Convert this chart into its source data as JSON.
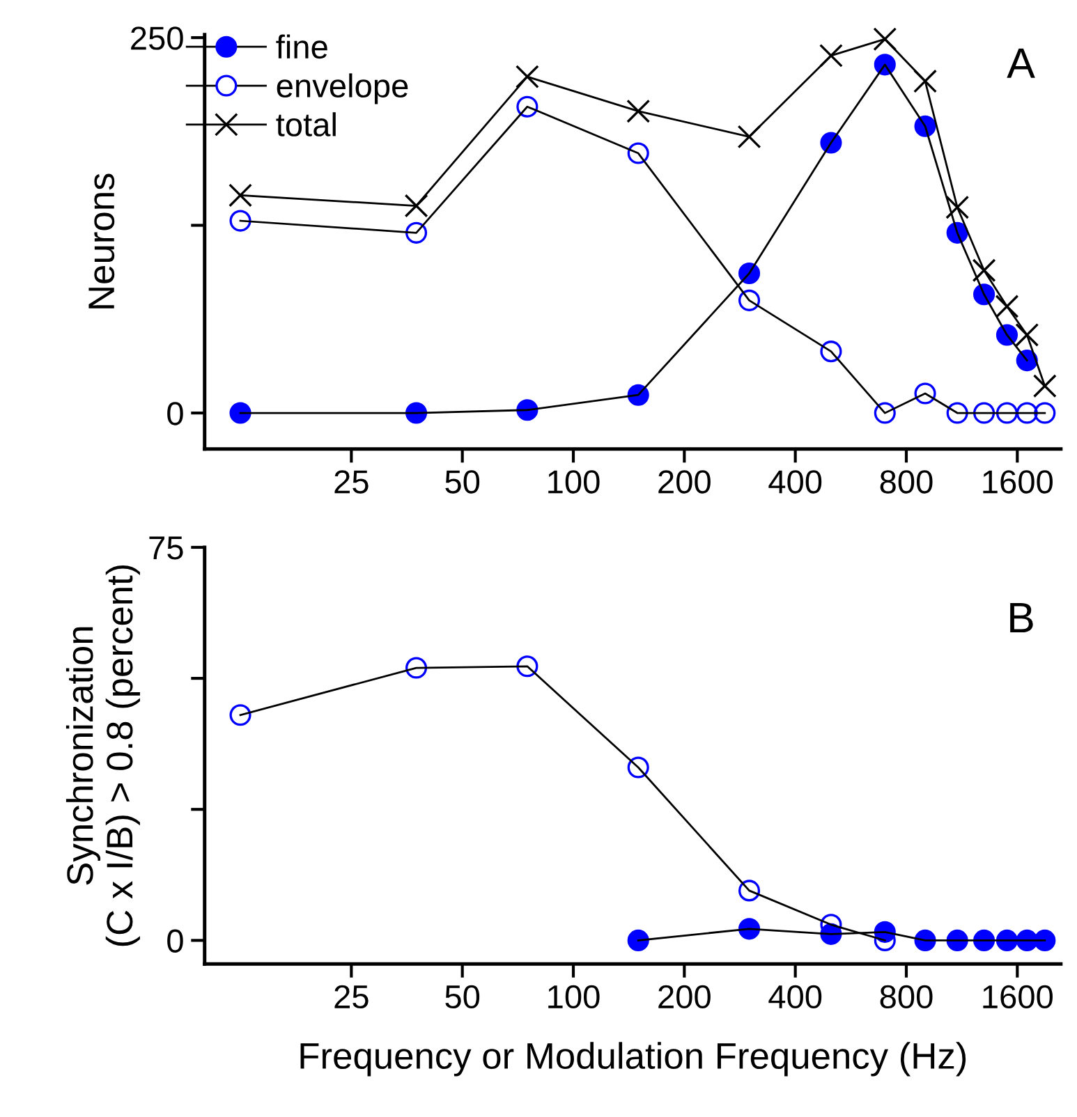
{
  "chart_data": [
    {
      "type": "line",
      "ylabel": "Neurons",
      "log": "x",
      "line_style": "solid",
      "legend": "top left",
      "grid": false,
      "xlim": [
        10,
        2100
      ],
      "xticks": [
        25,
        50,
        100,
        200,
        400,
        800,
        1600
      ],
      "ylim": [
        -24,
        252
      ],
      "yticks": [
        0,
        {
          "value": 125,
          "label": null
        },
        250
      ],
      "annotations": [
        "A"
      ],
      "x": [
        12.5,
        37.5,
        75,
        150,
        300,
        500,
        700,
        900,
        1100,
        1300,
        1500,
        1700,
        1900
      ],
      "series": [
        {
          "name": "fine",
          "color": "#0000ff",
          "marker": "circle",
          "values": [
            0,
            0,
            2,
            12,
            93,
            180,
            232,
            191,
            120,
            79,
            52,
            35,
            null
          ]
        },
        {
          "name": "envelope",
          "color": "#0000ff",
          "marker": "circle",
          "values": [
            128,
            120,
            204,
            173,
            75,
            41,
            0,
            13,
            0,
            0,
            0,
            0,
            0
          ]
        },
        {
          "name": "total",
          "color": "#000000",
          "marker": "cross",
          "values": [
            145,
            138,
            224,
            201,
            184,
            238,
            249,
            221,
            137,
            95,
            71,
            52,
            18
          ]
        }
      ]
    },
    {
      "type": "line",
      "xlabel": "Frequency or Modulation Frequency (Hz)",
      "ylabel": "Synchronization\n(C x I/B) > 0.8 (percent)",
      "log": "x",
      "line_style": "solid",
      "grid": false,
      "xlim": [
        10,
        2100
      ],
      "xticks": [
        25,
        50,
        100,
        200,
        400,
        800,
        1600
      ],
      "ylim": [
        -4.5,
        75
      ],
      "yticks": [
        0,
        {
          "value": 25,
          "label": null
        },
        {
          "value": 50,
          "label": null
        },
        75
      ],
      "annotations": [
        "B"
      ],
      "series": [
        {
          "color": "#0000ff",
          "marker": "circle",
          "x": [
            12.5,
            37.5,
            75,
            150,
            300,
            500,
            700
          ],
          "values": [
            43,
            52,
            52.3,
            33,
            9.5,
            3,
            0
          ]
        },
        {
          "color": "#0000ff",
          "marker": "circle",
          "x": [
            150,
            300,
            500,
            700,
            900,
            1100,
            1300,
            1500,
            1700,
            1900
          ],
          "values": [
            0,
            2.2,
            1.2,
            1.6,
            0,
            0,
            0,
            0,
            0,
            0
          ]
        }
      ]
    }
  ]
}
